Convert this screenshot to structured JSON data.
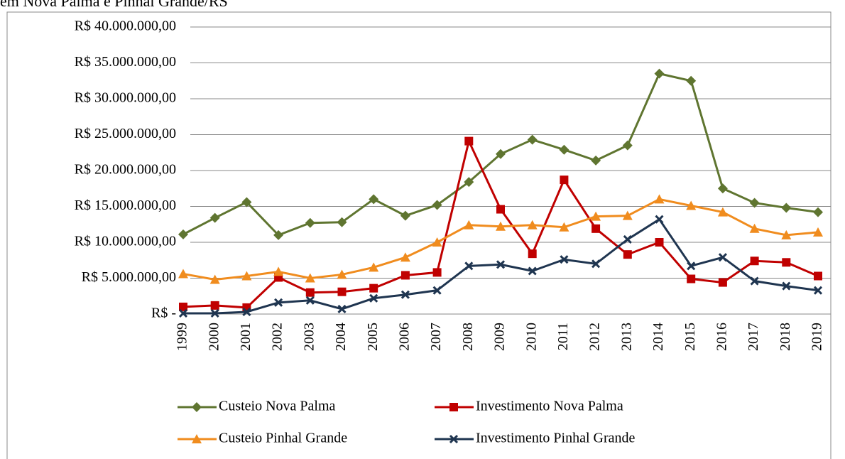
{
  "chart_data": {
    "type": "line",
    "title": "em Nova Palma e Pinhal Grande/RS",
    "categories": [
      "1999",
      "2000",
      "2001",
      "2002",
      "2003",
      "2004",
      "2005",
      "2006",
      "2007",
      "2008",
      "2009",
      "2010",
      "2011",
      "2012",
      "2013",
      "2014",
      "2015",
      "2016",
      "2017",
      "2018",
      "2019"
    ],
    "ylim": [
      0,
      40000000
    ],
    "yticks": [
      {
        "value": 0,
        "label": "R$ -"
      },
      {
        "value": 5000000,
        "label": "R$ 5.000.000,00"
      },
      {
        "value": 10000000,
        "label": "R$ 10.000.000,00"
      },
      {
        "value": 15000000,
        "label": "R$ 15.000.000,00"
      },
      {
        "value": 20000000,
        "label": "R$ 20.000.000,00"
      },
      {
        "value": 25000000,
        "label": "R$ 25.000.000,00"
      },
      {
        "value": 30000000,
        "label": "R$ 30.000.000,00"
      },
      {
        "value": 35000000,
        "label": "R$ 35.000.000,00"
      },
      {
        "value": 40000000,
        "label": "R$ 40.000.000,00"
      }
    ],
    "grid": true,
    "series": [
      {
        "name": "Custeio Nova Palma",
        "color": "#5f7530",
        "marker": "diamond",
        "values": [
          11100000,
          13400000,
          15600000,
          11000000,
          12700000,
          12800000,
          16000000,
          13700000,
          15200000,
          18400000,
          22300000,
          24300000,
          22900000,
          21400000,
          23500000,
          33500000,
          32500000,
          17500000,
          15500000,
          14800000,
          14200000
        ]
      },
      {
        "name": "Investimento Nova Palma",
        "color": "#c00000",
        "marker": "square",
        "values": [
          1000000,
          1200000,
          900000,
          5100000,
          3000000,
          3100000,
          3600000,
          5400000,
          5800000,
          24100000,
          14600000,
          8400000,
          18700000,
          11900000,
          8300000,
          10000000,
          4900000,
          4400000,
          7400000,
          7200000,
          5300000
        ]
      },
      {
        "name": "Custeio Pinhal Grande",
        "color": "#f08c1e",
        "marker": "triangle",
        "values": [
          5600000,
          4800000,
          5300000,
          5900000,
          5000000,
          5500000,
          6500000,
          7900000,
          10000000,
          12400000,
          12200000,
          12400000,
          12100000,
          13600000,
          13700000,
          16000000,
          15100000,
          14200000,
          11900000,
          11000000,
          11400000
        ]
      },
      {
        "name": "Investimento Pinhal Grande",
        "color": "#1f3550",
        "marker": "x",
        "values": [
          100000,
          100000,
          300000,
          1600000,
          1900000,
          700000,
          2200000,
          2700000,
          3300000,
          6700000,
          6900000,
          6000000,
          7600000,
          7000000,
          10400000,
          13200000,
          6700000,
          7900000,
          4600000,
          3900000,
          3300000
        ]
      }
    ]
  }
}
